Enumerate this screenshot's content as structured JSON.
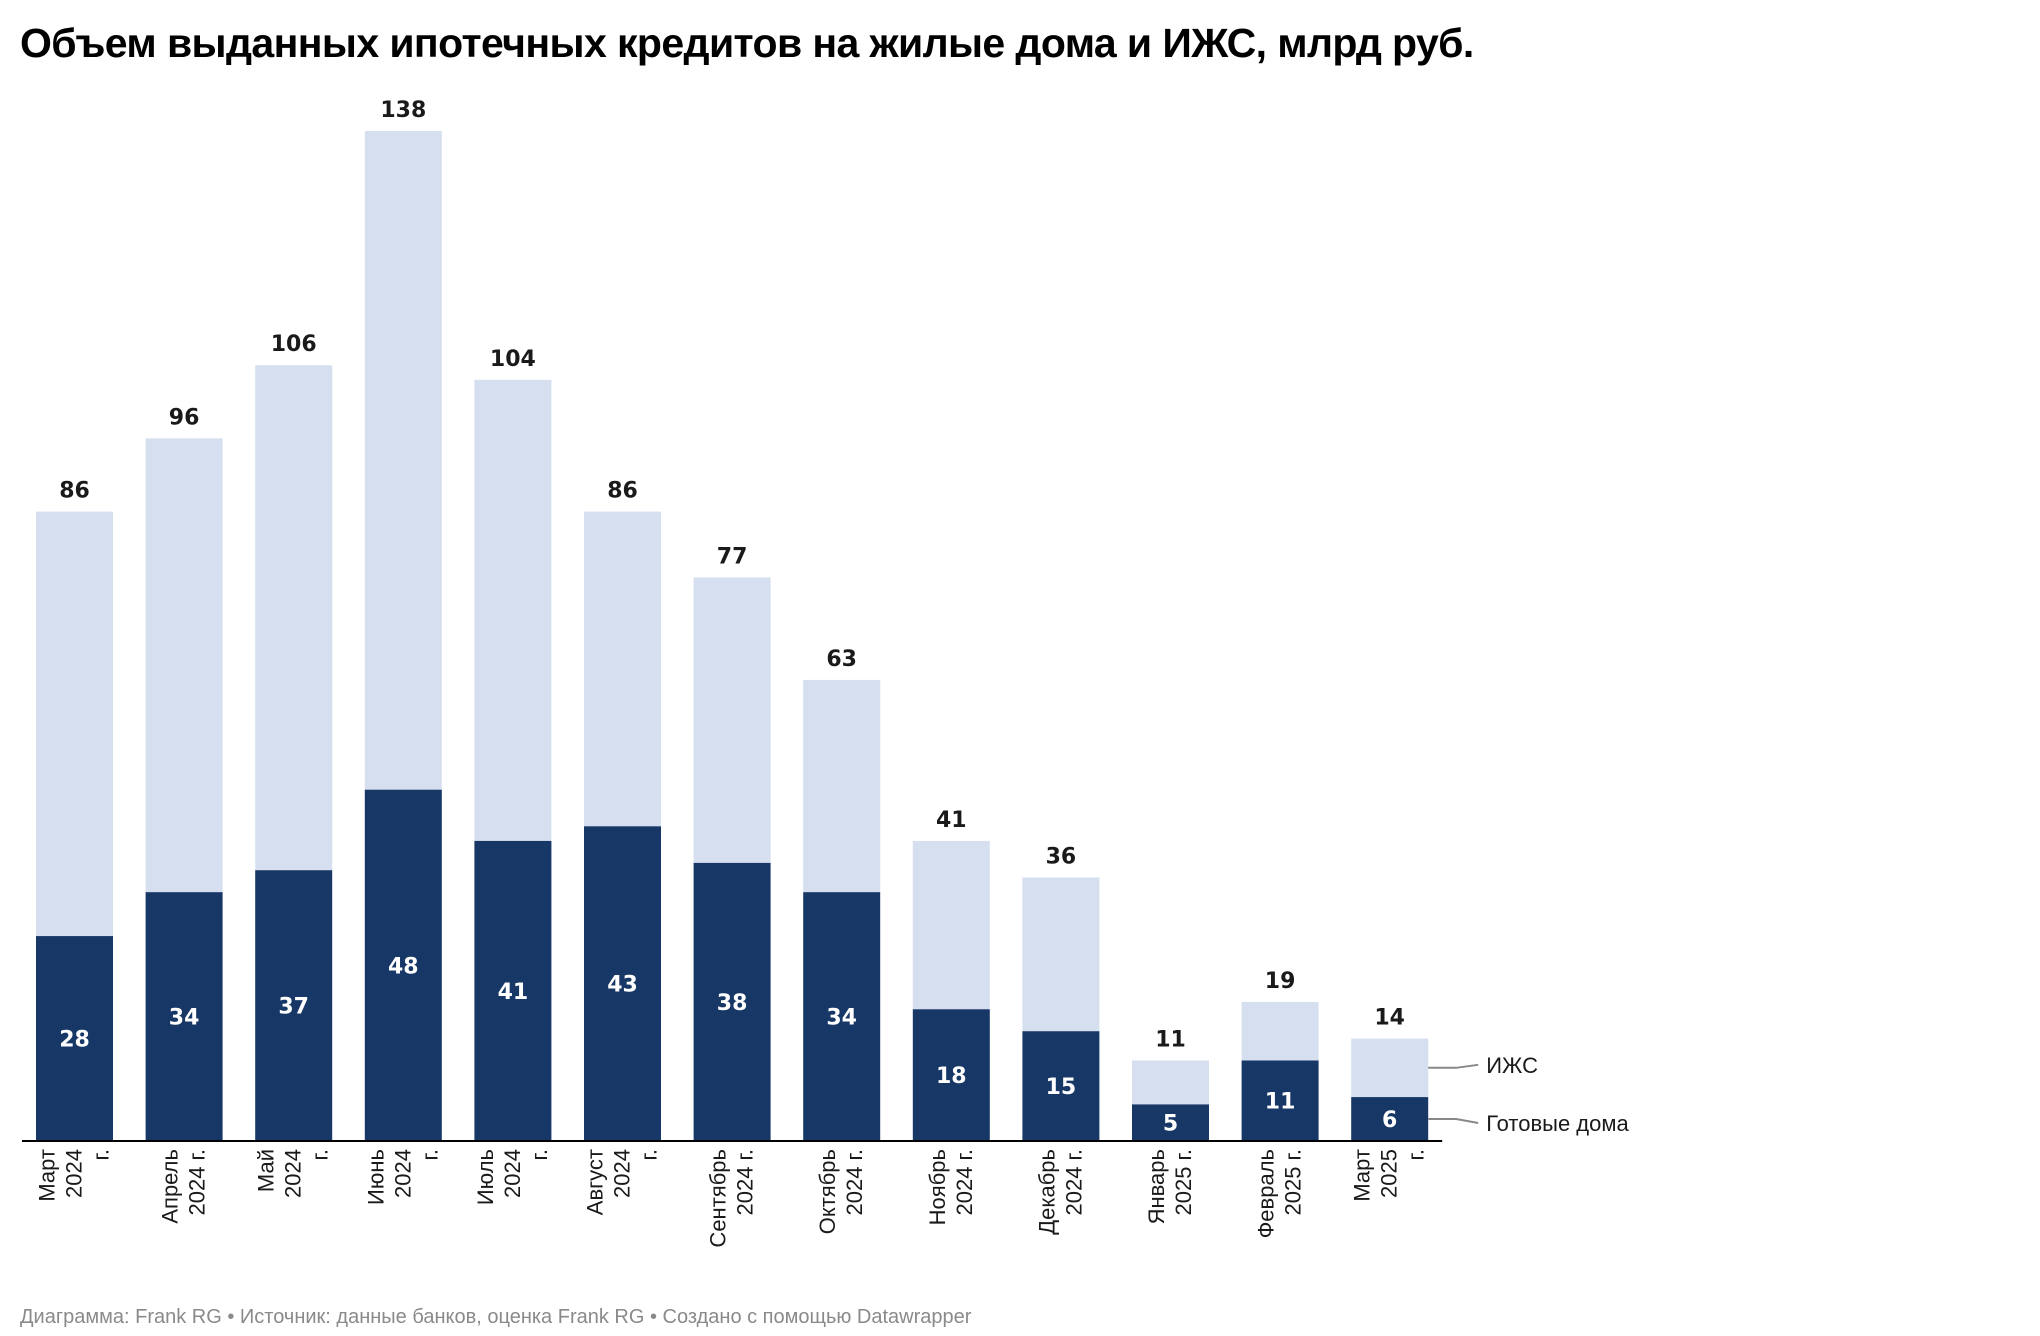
{
  "title": "Объем выданных ипотечных кредитов на жилые дома и ИЖС, млрд руб.",
  "footer": "Диаграмма: Frank RG • Источник: данные банков, оценка Frank RG • Создано с помощью Datawrapper",
  "colors": {
    "ready": "#173767",
    "izhs": "#d6dff0",
    "axis": "#000000",
    "leader": "#888888"
  },
  "chart_data": {
    "type": "bar",
    "stacked": true,
    "categories": [
      [
        "Март",
        "2024",
        "г."
      ],
      [
        "Апрель",
        "2024 г."
      ],
      [
        "Май",
        "2024",
        "г."
      ],
      [
        "Июнь",
        "2024",
        "г."
      ],
      [
        "Июль",
        "2024",
        "г."
      ],
      [
        "Август",
        "2024",
        "г."
      ],
      [
        "Сентябрь",
        "2024 г."
      ],
      [
        "Октябрь",
        "2024 г."
      ],
      [
        "Ноябрь",
        "2024 г."
      ],
      [
        "Декабрь",
        "2024 г."
      ],
      [
        "Январь",
        "2025 г."
      ],
      [
        "Февраль",
        "2025 г."
      ],
      [
        "Март",
        "2025",
        "г."
      ]
    ],
    "series": [
      {
        "name": "Готовые дома",
        "values": [
          28,
          34,
          37,
          48,
          41,
          43,
          38,
          34,
          18,
          15,
          5,
          11,
          6
        ]
      },
      {
        "name": "ИЖС",
        "values": [
          58,
          62,
          69,
          90,
          63,
          43,
          39,
          29,
          23,
          21,
          6,
          8,
          8
        ]
      }
    ],
    "totals": [
      86,
      96,
      106,
      138,
      104,
      86,
      77,
      63,
      41,
      36,
      11,
      19,
      14
    ],
    "ylim": [
      0,
      138
    ],
    "legend_placement": "right of last bar",
    "grid": false
  }
}
